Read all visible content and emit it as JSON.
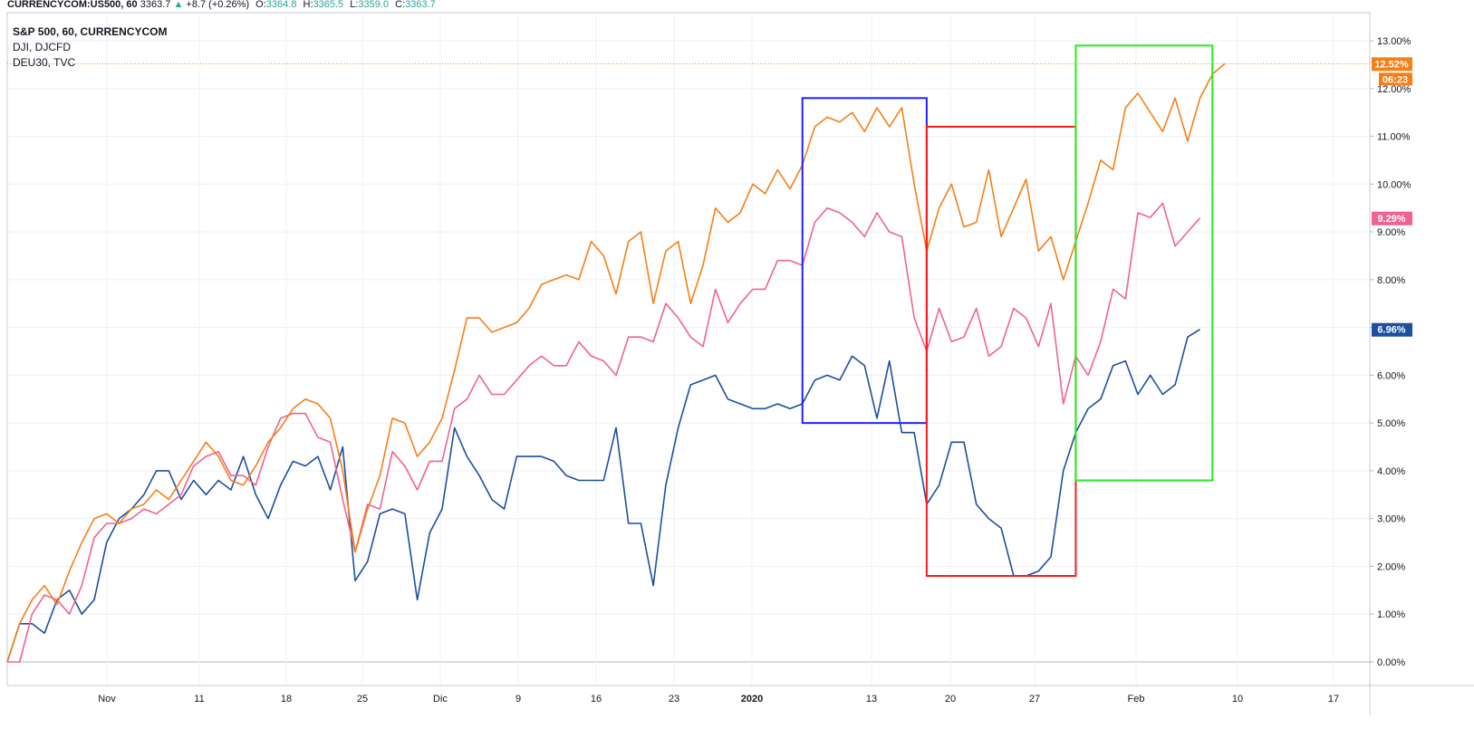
{
  "header": {
    "symbol": "CURRENCYCOM:US500, 60",
    "last": "3363.7",
    "change": "+8.7 (+0.26%)",
    "o_label": "O:",
    "o_value": "3364.8",
    "h_label": "H:",
    "h_value": "3365.5",
    "l_label": "L:",
    "l_value": "3359.0",
    "c_label": "C:",
    "c_value": "3363.7"
  },
  "legend": {
    "line1": "S&P 500, 60, CURRENCYCOM",
    "line2": "DJI, DJCFD",
    "line3": "DEU30, TVC"
  },
  "chart_data": {
    "type": "line",
    "ylim": [
      -1,
      13.5
    ],
    "y_ticks": [
      "13.00%",
      "12.00%",
      "11.00%",
      "10.00%",
      "9.00%",
      "8.00%",
      "7.00%",
      "6.00%",
      "5.00%",
      "4.00%",
      "3.00%",
      "2.00%",
      "1.00%",
      "0.00%"
    ],
    "x_ticks": [
      "Nov",
      "11",
      "18",
      "25",
      "Dic",
      "9",
      "16",
      "23",
      "2020",
      "13",
      "20",
      "27",
      "Feb",
      "10",
      "17"
    ],
    "grid": true,
    "series": [
      {
        "color": "#f57f17",
        "last_label": "12.52%",
        "countdown": "06:23",
        "values": [
          0,
          0.8,
          1.3,
          1.6,
          1.2,
          1.9,
          2.5,
          3.0,
          3.1,
          2.9,
          3.2,
          3.3,
          3.6,
          3.4,
          3.8,
          4.2,
          4.6,
          4.3,
          3.8,
          3.7,
          4.1,
          4.6,
          4.9,
          5.3,
          5.5,
          5.4,
          5.1,
          4.0,
          2.3,
          3.2,
          3.9,
          5.1,
          5.0,
          4.3,
          4.6,
          5.1,
          6.1,
          7.2,
          7.2,
          6.9,
          7.0,
          7.1,
          7.4,
          7.9,
          8.0,
          8.1,
          8.0,
          8.8,
          8.5,
          7.7,
          8.8,
          9.0,
          7.5,
          8.6,
          8.8,
          7.5,
          8.3,
          9.5,
          9.2,
          9.4,
          10.0,
          9.8,
          10.3,
          9.9,
          10.4,
          11.2,
          11.4,
          11.3,
          11.5,
          11.1,
          11.6,
          11.2,
          11.6,
          10.0,
          8.6,
          9.5,
          10.0,
          9.1,
          9.2,
          10.3,
          8.9,
          9.5,
          10.1,
          8.6,
          8.9,
          8.0,
          8.8,
          9.6,
          10.5,
          10.3,
          11.6,
          11.9,
          11.5,
          11.1,
          11.8,
          10.9,
          11.8,
          12.3,
          12.52
        ]
      },
      {
        "color": "#f06292",
        "last_label": "9.29%",
        "values": [
          0,
          0,
          1.0,
          1.4,
          1.3,
          1.0,
          1.6,
          2.6,
          2.9,
          2.9,
          3.0,
          3.2,
          3.1,
          3.3,
          3.5,
          4.1,
          4.3,
          4.4,
          3.9,
          3.9,
          3.7,
          4.5,
          5.1,
          5.2,
          5.2,
          4.7,
          4.6,
          3.4,
          2.3,
          3.3,
          3.2,
          4.4,
          4.1,
          3.6,
          4.2,
          4.2,
          5.3,
          5.5,
          6.0,
          5.6,
          5.6,
          5.9,
          6.2,
          6.4,
          6.2,
          6.2,
          6.7,
          6.4,
          6.3,
          6.0,
          6.8,
          6.8,
          6.7,
          7.5,
          7.2,
          6.8,
          6.6,
          7.8,
          7.1,
          7.5,
          7.8,
          7.8,
          8.4,
          8.4,
          8.3,
          9.2,
          9.5,
          9.4,
          9.2,
          8.9,
          9.4,
          9.0,
          8.9,
          7.2,
          6.5,
          7.4,
          6.7,
          6.8,
          7.4,
          6.4,
          6.6,
          7.4,
          7.2,
          6.6,
          7.5,
          5.4,
          6.4,
          6.0,
          6.7,
          7.8,
          7.6,
          9.4,
          9.3,
          9.6,
          8.7,
          9.0,
          9.29
        ]
      },
      {
        "color": "#1c4f9f",
        "last_label": "6.96%",
        "values": [
          0,
          0.8,
          0.8,
          0.6,
          1.3,
          1.5,
          1.0,
          1.3,
          2.5,
          3.0,
          3.2,
          3.5,
          4.0,
          4.0,
          3.4,
          3.8,
          3.5,
          3.8,
          3.6,
          4.3,
          3.5,
          3.0,
          3.7,
          4.2,
          4.1,
          4.3,
          3.6,
          4.5,
          1.7,
          2.1,
          3.1,
          3.2,
          3.1,
          1.3,
          2.7,
          3.2,
          4.9,
          4.3,
          3.9,
          3.4,
          3.2,
          4.3,
          4.3,
          4.3,
          4.2,
          3.9,
          3.8,
          3.8,
          3.8,
          4.9,
          2.9,
          2.9,
          1.6,
          3.7,
          4.9,
          5.8,
          5.9,
          6.0,
          5.5,
          5.4,
          5.3,
          5.3,
          5.4,
          5.3,
          5.4,
          5.9,
          6.0,
          5.9,
          6.4,
          6.2,
          5.1,
          6.3,
          4.8,
          4.8,
          3.3,
          3.7,
          4.6,
          4.6,
          3.3,
          3.0,
          2.8,
          1.8,
          1.8,
          1.9,
          2.2,
          4.0,
          4.8,
          5.3,
          5.5,
          6.2,
          6.3,
          5.6,
          6.0,
          5.6,
          5.8,
          6.8,
          6.96
        ]
      }
    ],
    "annotation_boxes": [
      {
        "color": "#1e22ff",
        "x_start": 64,
        "x_end": 74,
        "y_top": 11.8,
        "y_bottom": 5.0
      },
      {
        "color": "#ff1a1a",
        "x_start": 74,
        "x_end": 86,
        "y_top": 11.2,
        "y_bottom": 1.8
      },
      {
        "color": "#22ee22",
        "x_start": 86,
        "x_end": 97,
        "y_top": 12.9,
        "y_bottom": 3.8
      }
    ],
    "price_line_value": 12.52
  }
}
